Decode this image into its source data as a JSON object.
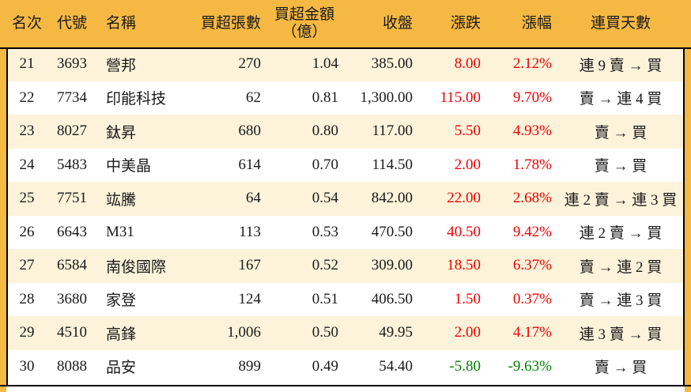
{
  "colors": {
    "frame_orange": "#F5B842",
    "row_stripe_cream": "#FCF3DA",
    "up_red": "#EE0000",
    "down_green": "#008000",
    "line_black": "#000000",
    "text_black": "#1A1A1A"
  },
  "chart_data": {
    "type": "table",
    "description_visible": "ranked net-buy stock table, rows 21-30",
    "legend_position": "none",
    "grid": "horizontal stripes, black frame rules, orange outer frame",
    "columns": [
      {
        "key": "rank",
        "label": "名次"
      },
      {
        "key": "code",
        "label": "代號"
      },
      {
        "key": "name",
        "label": "名稱"
      },
      {
        "key": "net_buy_volume",
        "label": "買超張數"
      },
      {
        "key": "net_buy_amount",
        "label": "買超金額\n（億）"
      },
      {
        "key": "close",
        "label": "收盤"
      },
      {
        "key": "change",
        "label": "漲跌"
      },
      {
        "key": "change_pct",
        "label": "漲幅"
      },
      {
        "key": "streak",
        "label": "連買天數"
      }
    ],
    "rows": [
      {
        "rank": "21",
        "code": "3693",
        "name": "營邦",
        "net_buy_volume": "270",
        "net_buy_amount": "1.04",
        "close": "385.00",
        "change": "8.00",
        "change_pct": "2.12%",
        "streak": "連 9 賣 → 買",
        "trend": "up"
      },
      {
        "rank": "22",
        "code": "7734",
        "name": "印能科技",
        "net_buy_volume": "62",
        "net_buy_amount": "0.81",
        "close": "1,300.00",
        "change": "115.00",
        "change_pct": "9.70%",
        "streak": "賣 → 連 4 買",
        "trend": "up"
      },
      {
        "rank": "23",
        "code": "8027",
        "name": "鈦昇",
        "net_buy_volume": "680",
        "net_buy_amount": "0.80",
        "close": "117.00",
        "change": "5.50",
        "change_pct": "4.93%",
        "streak": "賣 → 買",
        "trend": "up"
      },
      {
        "rank": "24",
        "code": "5483",
        "name": "中美晶",
        "net_buy_volume": "614",
        "net_buy_amount": "0.70",
        "close": "114.50",
        "change": "2.00",
        "change_pct": "1.78%",
        "streak": "賣 → 買",
        "trend": "up"
      },
      {
        "rank": "25",
        "code": "7751",
        "name": "竑騰",
        "net_buy_volume": "64",
        "net_buy_amount": "0.54",
        "close": "842.00",
        "change": "22.00",
        "change_pct": "2.68%",
        "streak": "連 2 賣 → 連 3 買",
        "trend": "up"
      },
      {
        "rank": "26",
        "code": "6643",
        "name": "M31",
        "net_buy_volume": "113",
        "net_buy_amount": "0.53",
        "close": "470.50",
        "change": "40.50",
        "change_pct": "9.42%",
        "streak": "連 2 賣 → 買",
        "trend": "up"
      },
      {
        "rank": "27",
        "code": "6584",
        "name": "南俊國際",
        "net_buy_volume": "167",
        "net_buy_amount": "0.52",
        "close": "309.00",
        "change": "18.50",
        "change_pct": "6.37%",
        "streak": "賣 → 連 2 買",
        "trend": "up"
      },
      {
        "rank": "28",
        "code": "3680",
        "name": "家登",
        "net_buy_volume": "124",
        "net_buy_amount": "0.51",
        "close": "406.50",
        "change": "1.50",
        "change_pct": "0.37%",
        "streak": "賣 → 連 3 買",
        "trend": "up"
      },
      {
        "rank": "29",
        "code": "4510",
        "name": "高鋒",
        "net_buy_volume": "1,006",
        "net_buy_amount": "0.50",
        "close": "49.95",
        "change": "2.00",
        "change_pct": "4.17%",
        "streak": "連 3 賣 → 買",
        "trend": "up"
      },
      {
        "rank": "30",
        "code": "8088",
        "name": "品安",
        "net_buy_volume": "899",
        "net_buy_amount": "0.49",
        "close": "54.40",
        "change": "-5.80",
        "change_pct": "-9.63%",
        "streak": "賣 → 買",
        "trend": "down"
      }
    ]
  }
}
